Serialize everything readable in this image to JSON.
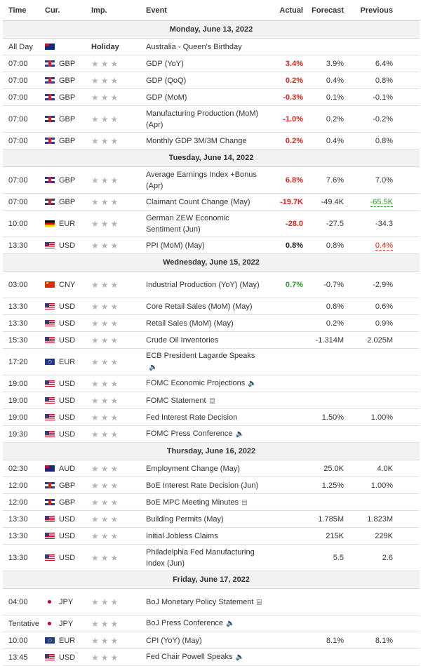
{
  "headers": {
    "time": "Time",
    "cur": "Cur.",
    "imp": "Imp.",
    "event": "Event",
    "actual": "Actual",
    "forecast": "Forecast",
    "previous": "Previous"
  },
  "stars": "★★★",
  "days": [
    {
      "label": "Monday, June 13, 2022",
      "rows": [
        {
          "time": "All Day",
          "flag": "au",
          "cur": "",
          "holiday": "Holiday",
          "event": "Australia - Queen's Birthday",
          "actual": "",
          "forecast": "",
          "previous": "",
          "h": 24
        },
        {
          "time": "07:00",
          "flag": "gb",
          "cur": "GBP",
          "event": "GDP (YoY)",
          "actual": "3.4%",
          "ac": "red",
          "forecast": "3.9%",
          "previous": "6.4%",
          "h": 24
        },
        {
          "time": "07:00",
          "flag": "gb",
          "cur": "GBP",
          "event": "GDP (QoQ)",
          "actual": "0.2%",
          "ac": "red",
          "forecast": "0.4%",
          "previous": "0.8%",
          "h": 24
        },
        {
          "time": "07:00",
          "flag": "gb",
          "cur": "GBP",
          "event": "GDP (MoM)",
          "actual": "-0.3%",
          "ac": "red",
          "forecast": "0.1%",
          "previous": "-0.1%",
          "h": 24
        },
        {
          "time": "07:00",
          "flag": "gb",
          "cur": "GBP",
          "event": "Manufacturing Production (MoM) (Apr)",
          "actual": "-1.0%",
          "ac": "red",
          "forecast": "0.2%",
          "previous": "-0.2%",
          "h": 38
        },
        {
          "time": "07:00",
          "flag": "gb",
          "cur": "GBP",
          "event": "Monthly GDP 3M/3M Change",
          "actual": "0.2%",
          "ac": "red",
          "forecast": "0.4%",
          "previous": "0.8%",
          "h": 24
        }
      ]
    },
    {
      "label": "Tuesday, June 14, 2022",
      "rows": [
        {
          "time": "07:00",
          "flag": "gb",
          "cur": "GBP",
          "event": "Average Earnings Index +Bonus (Apr)",
          "actual": "6.8%",
          "ac": "red",
          "forecast": "7.6%",
          "previous": "7.0%",
          "h": 38
        },
        {
          "time": "07:00",
          "flag": "gb",
          "cur": "GBP",
          "event": "Claimant Count Change (May)",
          "actual": "-19.7K",
          "ac": "red",
          "forecast": "-49.4K",
          "previous": "-65.5K",
          "pc": "rev-green",
          "h": 24
        },
        {
          "time": "10:00",
          "flag": "de",
          "cur": "EUR",
          "event": "German ZEW Economic Sentiment (Jun)",
          "actual": "-28.0",
          "ac": "red",
          "forecast": "-27.5",
          "previous": "-34.3",
          "h": 38
        },
        {
          "time": "13:30",
          "flag": "us",
          "cur": "USD",
          "event": "PPI (MoM) (May)",
          "actual": "0.8%",
          "ac": "black",
          "forecast": "0.8%",
          "previous": "0.4%",
          "pc": "rev-red",
          "h": 24
        }
      ]
    },
    {
      "label": "Wednesday, June 15, 2022",
      "rows": [
        {
          "time": "03:00",
          "flag": "cn",
          "cur": "CNY",
          "event": "Industrial Production (YoY) (May)",
          "actual": "0.7%",
          "ac": "green",
          "forecast": "-0.7%",
          "previous": "-2.9%",
          "h": 38
        },
        {
          "time": "13:30",
          "flag": "us",
          "cur": "USD",
          "event": "Core Retail Sales (MoM) (May)",
          "actual": "",
          "forecast": "0.8%",
          "previous": "0.6%",
          "h": 24
        },
        {
          "time": "13:30",
          "flag": "us",
          "cur": "USD",
          "event": "Retail Sales (MoM) (May)",
          "actual": "",
          "forecast": "0.2%",
          "previous": "0.9%",
          "h": 24
        },
        {
          "time": "15:30",
          "flag": "us",
          "cur": "USD",
          "event": "Crude Oil Inventories",
          "actual": "",
          "forecast": "-1.314M",
          "previous": "2.025M",
          "h": 24
        },
        {
          "time": "17:20",
          "flag": "eu",
          "cur": "EUR",
          "event": "ECB President Lagarde Speaks",
          "icon": "speaker",
          "actual": "",
          "forecast": "",
          "previous": "",
          "h": 38
        },
        {
          "time": "19:00",
          "flag": "us",
          "cur": "USD",
          "event": "FOMC Economic Projections",
          "icon": "speaker",
          "actual": "",
          "forecast": "",
          "previous": "",
          "h": 24
        },
        {
          "time": "19:00",
          "flag": "us",
          "cur": "USD",
          "event": "FOMC Statement",
          "icon": "doc",
          "actual": "",
          "forecast": "",
          "previous": "",
          "h": 24
        },
        {
          "time": "19:00",
          "flag": "us",
          "cur": "USD",
          "event": "Fed Interest Rate Decision",
          "actual": "",
          "forecast": "1.50%",
          "previous": "1.00%",
          "h": 24
        },
        {
          "time": "19:30",
          "flag": "us",
          "cur": "USD",
          "event": "FOMC Press Conference",
          "icon": "speaker",
          "actual": "",
          "forecast": "",
          "previous": "",
          "h": 24
        }
      ]
    },
    {
      "label": "Thursday, June 16, 2022",
      "rows": [
        {
          "time": "02:30",
          "flag": "au",
          "cur": "AUD",
          "event": "Employment Change (May)",
          "actual": "",
          "forecast": "25.0K",
          "previous": "4.0K",
          "h": 24
        },
        {
          "time": "12:00",
          "flag": "gb",
          "cur": "GBP",
          "event": "BoE Interest Rate Decision (Jun)",
          "actual": "",
          "forecast": "1.25%",
          "previous": "1.00%",
          "h": 24
        },
        {
          "time": "12:00",
          "flag": "gb",
          "cur": "GBP",
          "event": "BoE MPC Meeting Minutes",
          "icon": "doc",
          "actual": "",
          "forecast": "",
          "previous": "",
          "h": 24
        },
        {
          "time": "13:30",
          "flag": "us",
          "cur": "USD",
          "event": "Building Permits (May)",
          "actual": "",
          "forecast": "1.785M",
          "previous": "1.823M",
          "h": 24
        },
        {
          "time": "13:30",
          "flag": "us",
          "cur": "USD",
          "event": "Initial Jobless Claims",
          "actual": "",
          "forecast": "215K",
          "previous": "229K",
          "h": 24
        },
        {
          "time": "13:30",
          "flag": "us",
          "cur": "USD",
          "event": "Philadelphia Fed Manufacturing Index (Jun)",
          "actual": "",
          "forecast": "5.5",
          "previous": "2.6",
          "h": 38
        }
      ]
    },
    {
      "label": "Friday, June 17, 2022",
      "rows": [
        {
          "time": "04:00",
          "flag": "jp",
          "cur": "JPY",
          "event": "BoJ Monetary Policy Statement",
          "icon": "doc",
          "actual": "",
          "forecast": "",
          "previous": "",
          "h": 38
        },
        {
          "time": "Tentative",
          "flag": "jp",
          "cur": "JPY",
          "event": "BoJ Press Conference",
          "icon": "speaker",
          "actual": "",
          "forecast": "",
          "previous": "",
          "h": 24
        },
        {
          "time": "10:00",
          "flag": "eu",
          "cur": "EUR",
          "event": "CPI (YoY) (May)",
          "actual": "",
          "forecast": "8.1%",
          "previous": "8.1%",
          "h": 24
        },
        {
          "time": "13:45",
          "flag": "us",
          "cur": "USD",
          "event": "Fed Chair Powell Speaks",
          "icon": "speaker",
          "actual": "",
          "forecast": "",
          "previous": "",
          "h": 24
        }
      ]
    }
  ]
}
